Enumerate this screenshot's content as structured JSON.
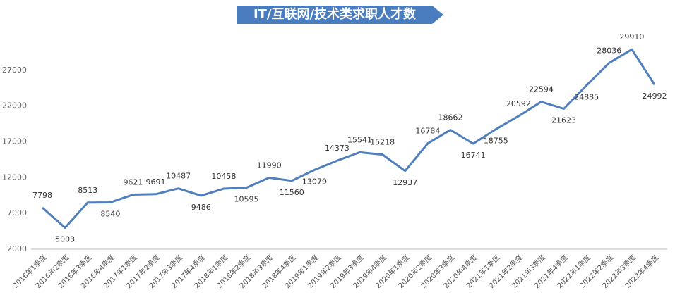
{
  "chart_data": {
    "type": "line",
    "title": "IT/互联网/技术类求职人才数",
    "categories": [
      "2016年1季度",
      "2016年2季度",
      "2016年3季度",
      "2016年4季度",
      "2017年1季度",
      "2017年2季度",
      "2017年3季度",
      "2017年4季度",
      "2018年1季度",
      "2018年2季度",
      "2018年3季度",
      "2018年4季度",
      "2019年1季度",
      "2019年2季度",
      "2019年3季度",
      "2019年4季度",
      "2020年1季度",
      "2020年2季度",
      "2020年3季度",
      "2020年4季度",
      "2021年1季度",
      "2021年2季度",
      "2021年3季度",
      "2021年4季度",
      "2022年1季度",
      "2022年2季度",
      "2022年3季度",
      "2022年4季度"
    ],
    "values": [
      7798,
      5003,
      8513,
      8540,
      9621,
      9691,
      10487,
      9486,
      10458,
      10595,
      11990,
      11560,
      13079,
      14373,
      15541,
      15218,
      12937,
      16784,
      18662,
      16741,
      18755,
      20592,
      22594,
      21623,
      24885,
      28036,
      29910,
      24992
    ],
    "color": "#4f7fbd",
    "ylim": [
      2000,
      32000
    ],
    "yticks": [
      2000,
      7000,
      12000,
      17000,
      22000,
      27000
    ],
    "grid": false
  }
}
